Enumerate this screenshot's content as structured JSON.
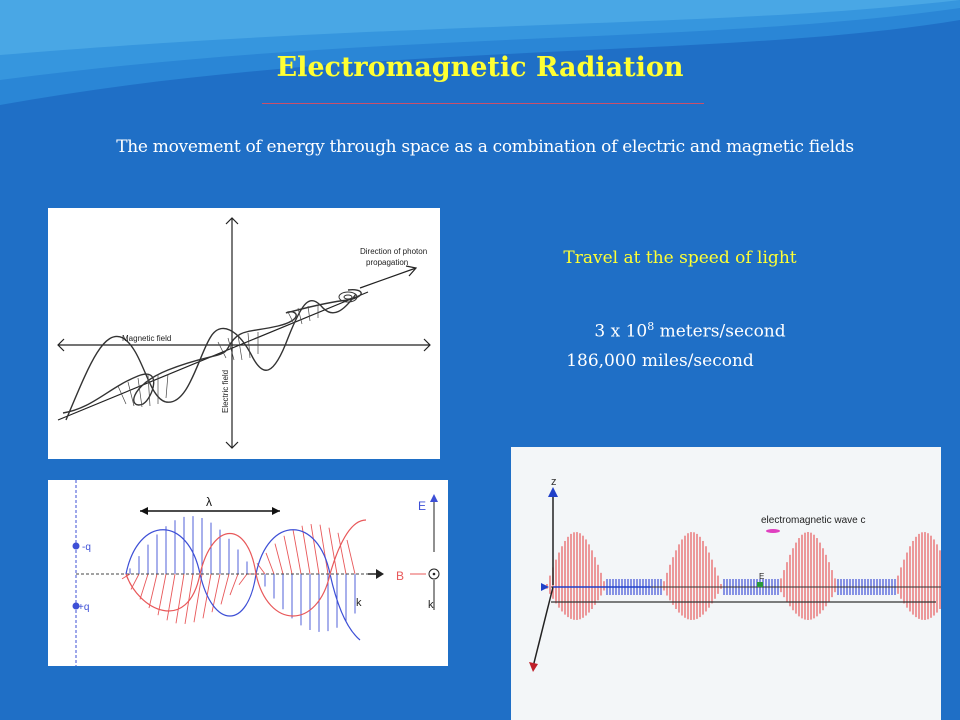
{
  "slide": {
    "title": "Electromagnetic Radiation",
    "definition": "The movement of energy through space as a combination of electric and magnetic fields",
    "speed_heading": "Travel at the speed of light",
    "speed_metric_prefix": "3 x 10",
    "speed_metric_exponent": "8",
    "speed_metric_suffix": " meters/second",
    "speed_imperial": "186,000 miles/second"
  },
  "figure1": {
    "direction_label_1": "Direction of photon",
    "direction_label_2": "propagation",
    "magnetic_label": "Magnetic field",
    "electric_label": "Electric field"
  },
  "figure2": {
    "lambda": "λ",
    "minus_q": "-q",
    "plus_q": "+q",
    "e_label": "E",
    "b_label": "B",
    "k_label": "k"
  },
  "figure3": {
    "z_label": "z",
    "wave_label": "electromagnetic wave c",
    "e_label": "E"
  },
  "colors": {
    "background": "#1f6fc6",
    "title": "#ffff33",
    "blue_wave": "#3d4fd6",
    "red_wave": "#e8585a"
  }
}
